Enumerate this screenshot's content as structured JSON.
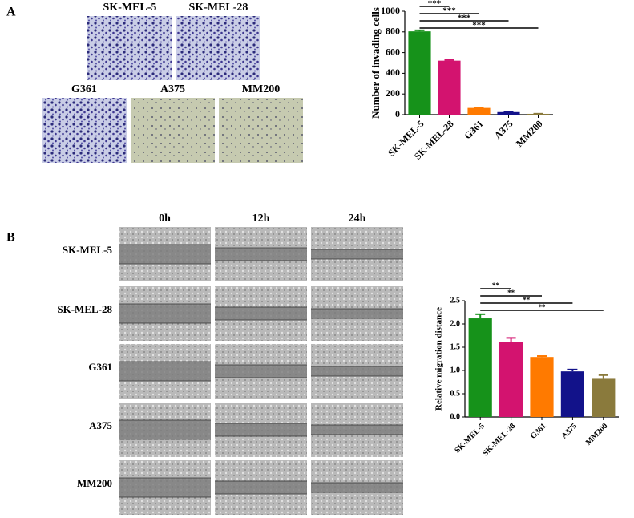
{
  "panel_a": {
    "label": "A",
    "images": [
      "SK-MEL-5",
      "SK-MEL-28",
      "G361",
      "A375",
      "MM200"
    ]
  },
  "panel_b": {
    "label": "B",
    "time_points": [
      "0h",
      "12h",
      "24h"
    ],
    "cell_lines": [
      "SK-MEL-5",
      "SK-MEL-28",
      "G361",
      "A375",
      "MM200"
    ]
  },
  "chart_data": [
    {
      "type": "bar",
      "ylabel": "Number of invading cells",
      "categories": [
        "SK-MEL-5",
        "SK-MEL-28",
        "G361",
        "A375",
        "MM200"
      ],
      "values": [
        805,
        522,
        65,
        25,
        8
      ],
      "errors": [
        10,
        6,
        3,
        2,
        1
      ],
      "colors": [
        "#16921a",
        "#d3136f",
        "#ff7a00",
        "#12128a",
        "#8a7a3c"
      ],
      "annotations": [
        "***",
        "***",
        "***",
        "***"
      ],
      "ylim": [
        0,
        1000
      ],
      "yticks": [
        0,
        200,
        400,
        600,
        800,
        1000
      ]
    },
    {
      "type": "bar",
      "ylabel": "Relative migration distance",
      "categories": [
        "SK-MEL-5",
        "SK-MEL-28",
        "G361",
        "A375",
        "MM200"
      ],
      "values": [
        2.12,
        1.62,
        1.29,
        0.98,
        0.82
      ],
      "errors": [
        0.09,
        0.08,
        0.02,
        0.04,
        0.08
      ],
      "colors": [
        "#16921a",
        "#d3136f",
        "#ff7a00",
        "#12128a",
        "#8a7a3c"
      ],
      "annotations": [
        "**",
        "**",
        "**",
        "**"
      ],
      "ylim": [
        0,
        2.5
      ],
      "yticks": [
        {
          "value": 0,
          "label": "0.0"
        },
        0.5,
        {
          "value": 1,
          "label": "1.0"
        },
        1.5,
        {
          "value": 2,
          "label": "2.0"
        },
        2.5
      ]
    }
  ]
}
